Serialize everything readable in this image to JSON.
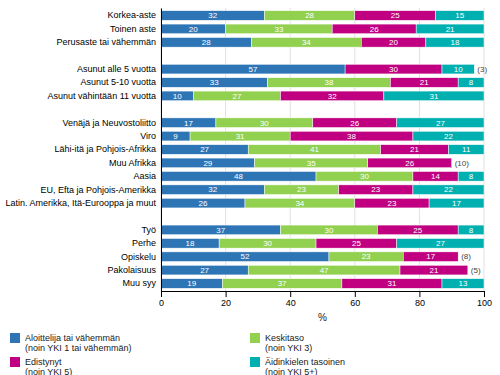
{
  "chart_data": {
    "type": "bar",
    "orientation": "horizontal",
    "stacked": true,
    "data_labels": true,
    "grid": true,
    "xlabel": "%",
    "xlim": [
      0,
      100
    ],
    "xticks": [
      0,
      20,
      40,
      60,
      80,
      100
    ],
    "categories": [
      "Korkea-aste",
      "Toinen aste",
      "Perusaste tai vähemmän",
      null,
      "Asunut alle 5 vuotta",
      "Asunut 5-10 vuotta",
      "Asunut vähintään 11 vuotta",
      null,
      "Venäjä ja Neuvostoliitto",
      "Viro",
      "Lähi-itä ja Pohjois-Afrikka",
      "Muu Afrikka",
      "Aasia",
      "EU, Efta ja Pohjois-Amerikka",
      "Latin. Amerikka, Itä-Eurooppa ja muut",
      null,
      "Työ",
      "Perhe",
      "Opiskelu",
      "Pakolaisuus",
      "Muu syy"
    ],
    "series": [
      {
        "name": "Aloittelija tai vähemmän\n(noin YKI 1 tai vähemmän)",
        "color": "#2e75b6",
        "values": [
          32,
          20,
          28,
          0,
          57,
          33,
          10,
          0,
          17,
          9,
          27,
          29,
          48,
          32,
          26,
          0,
          37,
          18,
          52,
          27,
          19
        ]
      },
      {
        "name": "Keskitaso\n(noin YKI 3)",
        "color": "#92d050",
        "values": [
          28,
          33,
          34,
          0,
          0,
          38,
          27,
          0,
          30,
          31,
          41,
          35,
          30,
          23,
          34,
          0,
          30,
          30,
          23,
          47,
          37
        ]
      },
      {
        "name": "Edistynyt\n(noin YKI 5)",
        "color": "#c00080",
        "values": [
          25,
          26,
          20,
          0,
          30,
          21,
          32,
          0,
          26,
          38,
          21,
          26,
          14,
          23,
          23,
          0,
          25,
          25,
          17,
          21,
          31
        ]
      },
      {
        "name": "Äidinkielen tasoinen\n(noin YKI 5+)",
        "color": "#00b0b0",
        "values": [
          15,
          21,
          18,
          0,
          10,
          8,
          31,
          0,
          27,
          22,
          11,
          0,
          8,
          22,
          17,
          0,
          8,
          27,
          0,
          0,
          13
        ],
        "annotations": [
          null,
          null,
          null,
          null,
          "(3)",
          null,
          null,
          null,
          null,
          null,
          null,
          "(10)",
          null,
          null,
          null,
          null,
          null,
          null,
          "(8)",
          "(5)",
          null
        ]
      }
    ]
  }
}
